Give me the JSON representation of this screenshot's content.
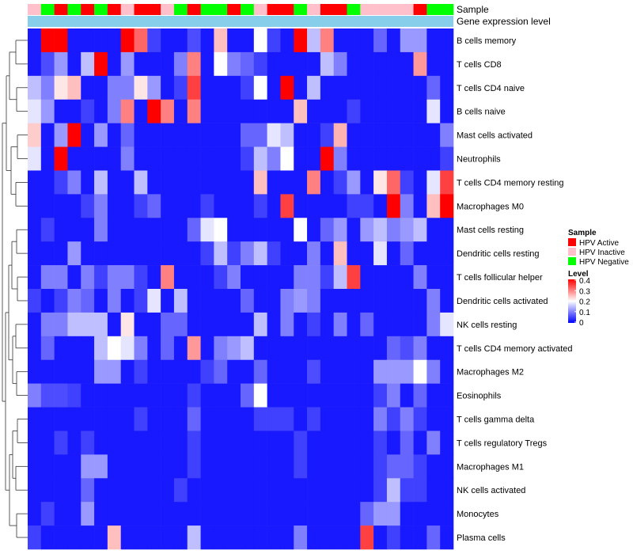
{
  "chart_data": {
    "type": "heatmap",
    "title": "",
    "annotation_tracks": [
      "Sample",
      "Gene expression level"
    ],
    "sample_groups": [
      "Inactive",
      "Negative",
      "Active",
      "Negative",
      "Active",
      "Negative",
      "Active",
      "Inactive",
      "Active",
      "Active",
      "Inactive",
      "Negative",
      "Active",
      "Negative",
      "Negative",
      "Active",
      "Negative",
      "Inactive",
      "Active",
      "Active",
      "Negative",
      "Inactive",
      "Active",
      "Active",
      "Negative",
      "Inactive",
      "Inactive",
      "Inactive",
      "Inactive",
      "Active",
      "Negative",
      "Negative"
    ],
    "rows": [
      "B cells memory",
      "T cells CD8",
      "T cells CD4 naive",
      "B cells naive",
      "Mast cells activated",
      "Neutrophils",
      "T cells CD4 memory resting",
      "Macrophages M0",
      "Mast cells resting",
      "Dendritic cells resting",
      "T cells follicular helper",
      "Dendritic cells activated",
      "NK cells resting",
      "T cells CD4 memory activated",
      "Macrophages M2",
      "Eosinophils",
      "T cells gamma delta",
      "T cells regulatory  Tregs",
      "Macrophages M1",
      "NK cells activated",
      "Monocytes",
      "Plasma cells"
    ],
    "values": [
      [
        0.02,
        0.4,
        0.4,
        0.02,
        0.02,
        0.02,
        0.02,
        0.4,
        0.32,
        0.05,
        0.02,
        0.02,
        0.06,
        0.02,
        0.25,
        0.02,
        0.02,
        0.2,
        0.05,
        0.02,
        0.4,
        0.15,
        0.3,
        0.02,
        0.02,
        0.02,
        0.08,
        0.02,
        0.12,
        0.12,
        0.02,
        0.02
      ],
      [
        0.02,
        0.06,
        0.12,
        0.02,
        0.15,
        0.4,
        0.02,
        0.12,
        0.02,
        0.02,
        0.02,
        0.1,
        0.3,
        0.02,
        0.2,
        0.1,
        0.08,
        0.05,
        0.02,
        0.02,
        0.02,
        0.02,
        0.15,
        0.1,
        0.02,
        0.02,
        0.02,
        0.02,
        0.02,
        0.28,
        0.02,
        0.02
      ],
      [
        0.15,
        0.1,
        0.22,
        0.25,
        0.02,
        0.02,
        0.1,
        0.1,
        0.22,
        0.12,
        0.02,
        0.05,
        0.35,
        0.02,
        0.02,
        0.02,
        0.05,
        0.2,
        0.02,
        0.4,
        0.02,
        0.15,
        0.02,
        0.02,
        0.02,
        0.02,
        0.02,
        0.02,
        0.02,
        0.02,
        0.08,
        0.02
      ],
      [
        0.18,
        0.12,
        0.02,
        0.02,
        0.05,
        0.02,
        0.1,
        0.3,
        0.02,
        0.4,
        0.3,
        0.02,
        0.3,
        0.02,
        0.02,
        0.02,
        0.02,
        0.02,
        0.02,
        0.02,
        0.25,
        0.02,
        0.02,
        0.02,
        0.05,
        0.02,
        0.02,
        0.02,
        0.02,
        0.02,
        0.18,
        0.02
      ],
      [
        0.24,
        0.02,
        0.12,
        0.4,
        0.02,
        0.12,
        0.02,
        0.08,
        0.02,
        0.02,
        0.02,
        0.02,
        0.02,
        0.02,
        0.02,
        0.02,
        0.08,
        0.08,
        0.18,
        0.15,
        0.02,
        0.02,
        0.05,
        0.26,
        0.02,
        0.02,
        0.02,
        0.02,
        0.02,
        0.02,
        0.02,
        0.1
      ],
      [
        0.18,
        0.02,
        0.4,
        0.02,
        0.02,
        0.02,
        0.02,
        0.1,
        0.02,
        0.02,
        0.02,
        0.02,
        0.02,
        0.02,
        0.02,
        0.02,
        0.05,
        0.15,
        0.1,
        0.2,
        0.02,
        0.02,
        0.4,
        0.1,
        0.02,
        0.02,
        0.02,
        0.02,
        0.02,
        0.02,
        0.02,
        0.05
      ],
      [
        0.02,
        0.02,
        0.05,
        0.1,
        0.02,
        0.15,
        0.02,
        0.02,
        0.15,
        0.02,
        0.02,
        0.02,
        0.02,
        0.02,
        0.02,
        0.02,
        0.02,
        0.25,
        0.02,
        0.02,
        0.02,
        0.3,
        0.02,
        0.05,
        0.12,
        0.02,
        0.22,
        0.32,
        0.05,
        0.02,
        0.18,
        0.35
      ],
      [
        0.02,
        0.02,
        0.02,
        0.02,
        0.05,
        0.1,
        0.02,
        0.02,
        0.05,
        0.08,
        0.02,
        0.02,
        0.02,
        0.05,
        0.02,
        0.02,
        0.02,
        0.05,
        0.02,
        0.35,
        0.02,
        0.02,
        0.02,
        0.02,
        0.05,
        0.05,
        0.02,
        0.4,
        0.1,
        0.02,
        0.25,
        0.4
      ],
      [
        0.02,
        0.05,
        0.02,
        0.02,
        0.02,
        0.1,
        0.02,
        0.02,
        0.02,
        0.02,
        0.02,
        0.02,
        0.08,
        0.18,
        0.2,
        0.02,
        0.02,
        0.02,
        0.02,
        0.02,
        0.2,
        0.02,
        0.08,
        0.12,
        0.02,
        0.12,
        0.15,
        0.1,
        0.12,
        0.15,
        0.02,
        0.02
      ],
      [
        0.02,
        0.02,
        0.02,
        0.12,
        0.02,
        0.02,
        0.02,
        0.02,
        0.02,
        0.02,
        0.02,
        0.02,
        0.02,
        0.05,
        0.15,
        0.05,
        0.1,
        0.15,
        0.05,
        0.02,
        0.02,
        0.1,
        0.02,
        0.25,
        0.02,
        0.02,
        0.18,
        0.02,
        0.08,
        0.02,
        0.02,
        0.02
      ],
      [
        0.02,
        0.1,
        0.1,
        0.02,
        0.1,
        0.05,
        0.1,
        0.1,
        0.05,
        0.02,
        0.3,
        0.02,
        0.02,
        0.02,
        0.05,
        0.1,
        0.02,
        0.02,
        0.02,
        0.02,
        0.1,
        0.1,
        0.05,
        0.15,
        0.35,
        0.02,
        0.02,
        0.02,
        0.02,
        0.1,
        0.02,
        0.02
      ],
      [
        0.05,
        0.02,
        0.05,
        0.1,
        0.08,
        0.02,
        0.1,
        0.02,
        0.05,
        0.18,
        0.02,
        0.15,
        0.02,
        0.02,
        0.02,
        0.02,
        0.08,
        0.02,
        0.02,
        0.1,
        0.12,
        0.1,
        0.02,
        0.02,
        0.02,
        0.02,
        0.02,
        0.02,
        0.02,
        0.02,
        0.1,
        0.02
      ],
      [
        0.02,
        0.1,
        0.1,
        0.15,
        0.15,
        0.15,
        0.02,
        0.22,
        0.02,
        0.02,
        0.08,
        0.08,
        0.02,
        0.02,
        0.02,
        0.02,
        0.02,
        0.15,
        0.02,
        0.1,
        0.02,
        0.05,
        0.02,
        0.1,
        0.02,
        0.08,
        0.02,
        0.02,
        0.02,
        0.02,
        0.1,
        0.18
      ],
      [
        0.02,
        0.08,
        0.02,
        0.02,
        0.02,
        0.15,
        0.2,
        0.18,
        0.1,
        0.02,
        0.08,
        0.02,
        0.28,
        0.02,
        0.1,
        0.12,
        0.15,
        0.02,
        0.02,
        0.02,
        0.02,
        0.02,
        0.02,
        0.02,
        0.02,
        0.02,
        0.02,
        0.08,
        0.06,
        0.1,
        0.02,
        0.02
      ],
      [
        0.02,
        0.02,
        0.02,
        0.02,
        0.02,
        0.12,
        0.12,
        0.02,
        0.05,
        0.02,
        0.02,
        0.02,
        0.02,
        0.05,
        0.08,
        0.02,
        0.02,
        0.08,
        0.02,
        0.02,
        0.02,
        0.06,
        0.02,
        0.02,
        0.02,
        0.02,
        0.12,
        0.12,
        0.12,
        0.2,
        0.1,
        0.02
      ],
      [
        0.1,
        0.06,
        0.06,
        0.05,
        0.02,
        0.02,
        0.02,
        0.02,
        0.02,
        0.02,
        0.02,
        0.02,
        0.05,
        0.02,
        0.02,
        0.02,
        0.08,
        0.2,
        0.02,
        0.02,
        0.02,
        0.02,
        0.02,
        0.02,
        0.02,
        0.02,
        0.05,
        0.1,
        0.02,
        0.08,
        0.02,
        0.02
      ],
      [
        0.02,
        0.02,
        0.02,
        0.02,
        0.02,
        0.02,
        0.02,
        0.02,
        0.05,
        0.02,
        0.02,
        0.02,
        0.08,
        0.02,
        0.02,
        0.02,
        0.02,
        0.05,
        0.05,
        0.05,
        0.02,
        0.05,
        0.02,
        0.02,
        0.02,
        0.02,
        0.1,
        0.05,
        0.1,
        0.05,
        0.02,
        0.02
      ],
      [
        0.02,
        0.02,
        0.05,
        0.02,
        0.05,
        0.02,
        0.02,
        0.02,
        0.02,
        0.02,
        0.02,
        0.02,
        0.05,
        0.02,
        0.02,
        0.02,
        0.02,
        0.02,
        0.02,
        0.02,
        0.05,
        0.02,
        0.02,
        0.02,
        0.02,
        0.02,
        0.05,
        0.02,
        0.08,
        0.02,
        0.1,
        0.02
      ],
      [
        0.02,
        0.02,
        0.02,
        0.02,
        0.12,
        0.12,
        0.02,
        0.02,
        0.02,
        0.02,
        0.02,
        0.02,
        0.05,
        0.02,
        0.02,
        0.02,
        0.02,
        0.02,
        0.02,
        0.02,
        0.05,
        0.02,
        0.02,
        0.02,
        0.02,
        0.02,
        0.05,
        0.08,
        0.08,
        0.05,
        0.02,
        0.02
      ],
      [
        0.02,
        0.02,
        0.02,
        0.02,
        0.08,
        0.02,
        0.02,
        0.02,
        0.02,
        0.02,
        0.02,
        0.05,
        0.02,
        0.02,
        0.02,
        0.02,
        0.02,
        0.02,
        0.02,
        0.02,
        0.02,
        0.02,
        0.02,
        0.02,
        0.02,
        0.02,
        0.05,
        0.15,
        0.05,
        0.05,
        0.02,
        0.02
      ],
      [
        0.02,
        0.05,
        0.02,
        0.02,
        0.12,
        0.02,
        0.02,
        0.02,
        0.02,
        0.02,
        0.02,
        0.02,
        0.02,
        0.02,
        0.02,
        0.02,
        0.02,
        0.02,
        0.02,
        0.02,
        0.02,
        0.02,
        0.02,
        0.02,
        0.02,
        0.08,
        0.12,
        0.12,
        0.02,
        0.02,
        0.02,
        0.02
      ],
      [
        0.05,
        0.02,
        0.02,
        0.02,
        0.02,
        0.02,
        0.25,
        0.02,
        0.02,
        0.02,
        0.02,
        0.02,
        0.15,
        0.02,
        0.02,
        0.02,
        0.02,
        0.02,
        0.02,
        0.02,
        0.1,
        0.02,
        0.02,
        0.02,
        0.02,
        0.35,
        0.02,
        0.05,
        0.02,
        0.02,
        0.08,
        0.02
      ]
    ],
    "legend": {
      "sample_title": "Sample",
      "sample_entries": [
        {
          "label": "HPV Active",
          "key": "Active",
          "color": "#ff0000"
        },
        {
          "label": "HPV Inactive",
          "key": "Inactive",
          "color": "#ffc0cb"
        },
        {
          "label": "HPV Negative",
          "key": "Negative",
          "color": "#00ff00"
        }
      ],
      "level_title": "Level",
      "level_ticks": [
        "0.4",
        "0.3",
        "0.2",
        "0.1",
        "0"
      ],
      "level_range": [
        0,
        0.4
      ]
    },
    "colors": {
      "low": "#0000ff",
      "mid": "#ffffff",
      "high": "#ff0000",
      "expression_track": "#87ceeb"
    }
  }
}
